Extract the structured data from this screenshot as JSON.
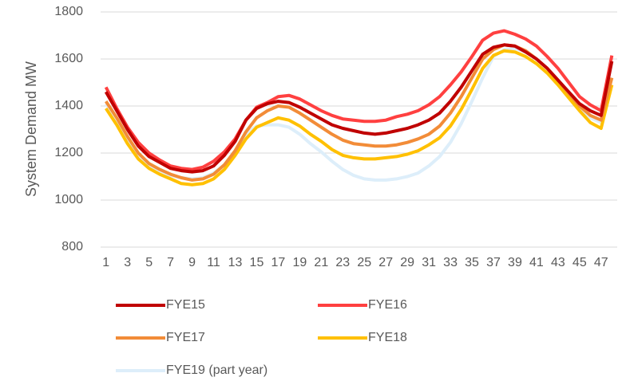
{
  "chart_data": {
    "type": "line",
    "y_label": "System  Demand MW",
    "categories": [
      1,
      null,
      3,
      null,
      5,
      null,
      7,
      null,
      9,
      null,
      11,
      null,
      13,
      null,
      15,
      null,
      17,
      null,
      19,
      null,
      21,
      null,
      23,
      null,
      25,
      null,
      27,
      null,
      29,
      null,
      31,
      null,
      33,
      null,
      35,
      null,
      37,
      null,
      39,
      null,
      41,
      null,
      43,
      null,
      45,
      null,
      47,
      null
    ],
    "ylim": [
      800,
      1800
    ],
    "yticks": [
      800,
      1000,
      1200,
      1400,
      1600,
      1800
    ],
    "grid": true,
    "series": [
      {
        "name": "FYE15",
        "color": "#c00000",
        "values": [
          1460,
          1380,
          1300,
          1230,
          1185,
          1160,
          1135,
          1125,
          1120,
          1125,
          1145,
          1190,
          1250,
          1340,
          1390,
          1410,
          1420,
          1415,
          1395,
          1370,
          1345,
          1320,
          1305,
          1295,
          1285,
          1280,
          1285,
          1295,
          1305,
          1320,
          1340,
          1370,
          1420,
          1480,
          1550,
          1620,
          1650,
          1660,
          1655,
          1630,
          1600,
          1560,
          1510,
          1460,
          1410,
          1380,
          1360,
          1590
        ]
      },
      {
        "name": "FYE16",
        "color": "#ff4040",
        "values": [
          1480,
          1390,
          1310,
          1245,
          1200,
          1170,
          1145,
          1135,
          1130,
          1140,
          1165,
          1205,
          1260,
          1340,
          1395,
          1415,
          1440,
          1445,
          1430,
          1405,
          1380,
          1360,
          1345,
          1340,
          1335,
          1335,
          1340,
          1355,
          1365,
          1380,
          1405,
          1440,
          1490,
          1545,
          1610,
          1680,
          1710,
          1720,
          1705,
          1685,
          1655,
          1610,
          1560,
          1500,
          1440,
          1405,
          1380,
          1615
        ]
      },
      {
        "name": "FYE17",
        "color": "#f28c38",
        "values": [
          1420,
          1350,
          1270,
          1200,
          1155,
          1130,
          1110,
          1095,
          1085,
          1090,
          1110,
          1150,
          1210,
          1290,
          1350,
          1380,
          1400,
          1395,
          1370,
          1340,
          1310,
          1280,
          1255,
          1240,
          1235,
          1230,
          1230,
          1235,
          1245,
          1260,
          1280,
          1315,
          1370,
          1440,
          1520,
          1600,
          1640,
          1660,
          1655,
          1635,
          1600,
          1560,
          1510,
          1455,
          1400,
          1360,
          1340,
          1520
        ]
      },
      {
        "name": "FYE18",
        "color": "#ffc000",
        "values": [
          1390,
          1320,
          1240,
          1175,
          1135,
          1110,
          1090,
          1070,
          1065,
          1070,
          1090,
          1130,
          1190,
          1260,
          1310,
          1330,
          1350,
          1340,
          1315,
          1280,
          1250,
          1215,
          1190,
          1180,
          1175,
          1175,
          1180,
          1185,
          1195,
          1210,
          1235,
          1265,
          1315,
          1385,
          1470,
          1560,
          1615,
          1635,
          1630,
          1610,
          1580,
          1540,
          1490,
          1435,
          1380,
          1330,
          1305,
          1490
        ]
      },
      {
        "name": "FYE19 (part year)",
        "color": "#ddeefa",
        "values": [
          1410,
          1345,
          1265,
          1195,
          1150,
          1125,
          1105,
          1095,
          1090,
          1095,
          1115,
          1150,
          1210,
          1280,
          1315,
          1320,
          1320,
          1310,
          1280,
          1240,
          1205,
          1165,
          1130,
          1105,
          1090,
          1085,
          1085,
          1090,
          1100,
          1115,
          1145,
          1185,
          1245,
          1325,
          1420,
          1520,
          1610,
          1640,
          1645,
          1630,
          1600,
          1560,
          1510,
          1450,
          1390,
          1350,
          1330,
          1490
        ]
      }
    ]
  }
}
